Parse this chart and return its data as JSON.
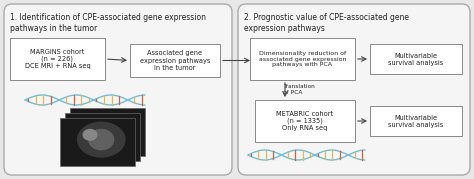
{
  "bg_color": "#e8e8e8",
  "panel_bg": "#f5f5f5",
  "box_color": "#ffffff",
  "box_edge": "#888888",
  "arrow_color": "#444444",
  "text_color": "#222222",
  "title1": "1. Identification of CPE-associated gene expression\npathways in the tumor",
  "title2": "2. Prognostic value of CPE-associated gene\nexpression pathways",
  "box1_text": "MARGINS cohort\n(n = 226)\nDCE MRI + RNA seq",
  "box2_text": "Associated gene\nexpression pathways\nin the tumor",
  "box3_text": "Dimensionality reduction of\nassociated gene expression\npathways with PCA",
  "box4_text": "Multivariable\nsurvival analysis",
  "box5_text": "METABRIC cohort\n(n = 1335)\nOnly RNA seq",
  "box6_text": "Multivariable\nsurvival analysis",
  "translation_text": "Translation\nof PCA"
}
